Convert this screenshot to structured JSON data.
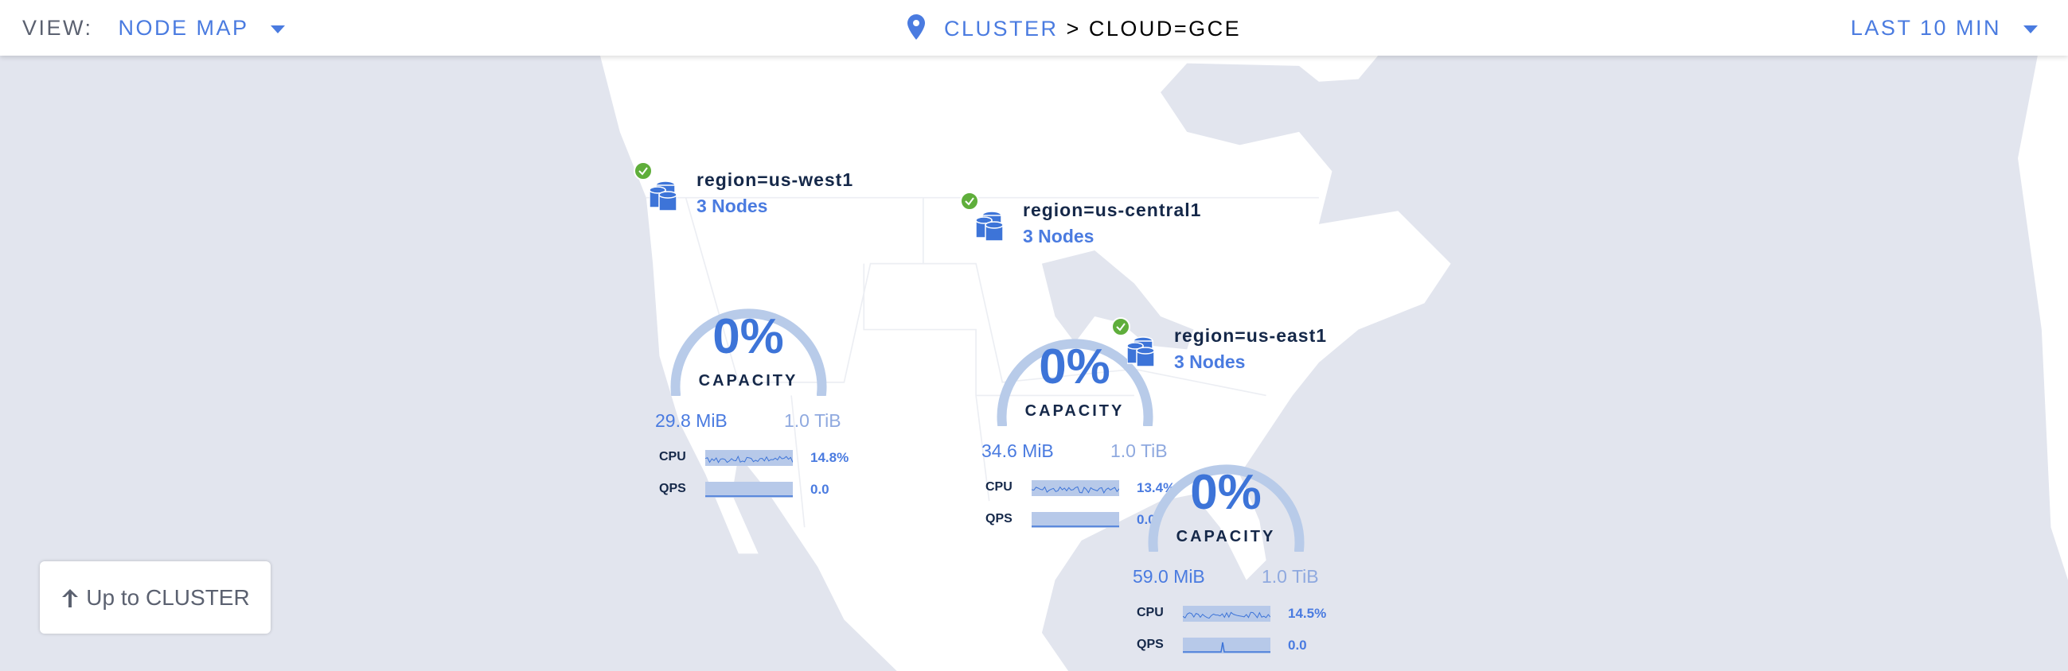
{
  "header": {
    "view_label": "VIEW:",
    "view_value": "NODE MAP",
    "breadcrumb_root": "CLUSTER",
    "breadcrumb_sep": ">",
    "breadcrumb_current": "CLOUD=GCE",
    "time_range": "LAST 10 MIN"
  },
  "colors": {
    "accent": "#4a7be0",
    "healthy": "#5fae3b",
    "gauge": "#b8cbe9",
    "map_water": "#e2e5ee",
    "map_land": "#ffffff"
  },
  "regions": [
    {
      "name": "region=us-west1",
      "nodes": "3 Nodes",
      "status_icon": "check-circle-icon",
      "capacity_pct": "0%",
      "capacity_label": "CAPACITY",
      "used": "29.8 MiB",
      "total": "1.0 TiB",
      "cpu_label": "CPU",
      "cpu": "14.8%",
      "qps_label": "QPS",
      "qps": "0.0"
    },
    {
      "name": "region=us-central1",
      "nodes": "3 Nodes",
      "status_icon": "check-circle-icon",
      "capacity_pct": "0%",
      "capacity_label": "CAPACITY",
      "used": "34.6 MiB",
      "total": "1.0 TiB",
      "cpu_label": "CPU",
      "cpu": "13.4%",
      "qps_label": "QPS",
      "qps": "0.0"
    },
    {
      "name": "region=us-east1",
      "nodes": "3 Nodes",
      "status_icon": "check-circle-icon",
      "capacity_pct": "0%",
      "capacity_label": "CAPACITY",
      "used": "59.0 MiB",
      "total": "1.0 TiB",
      "cpu_label": "CPU",
      "cpu": "14.5%",
      "qps_label": "QPS",
      "qps": "0.0"
    }
  ],
  "up_button": "Up to CLUSTER"
}
